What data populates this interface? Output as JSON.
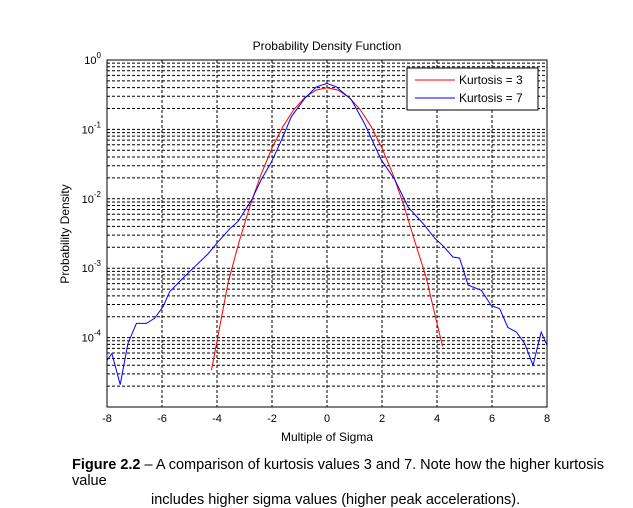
{
  "chart_data": {
    "type": "line",
    "title": "Probability Density Function",
    "xlabel": "Multiple of Sigma",
    "ylabel": "Probability Density",
    "xlim": [
      -8,
      8
    ],
    "ylim": [
      1e-05,
      1
    ],
    "yscale": "log",
    "grid": true,
    "legend_position": "top-right",
    "x_ticks": [
      "-8",
      "-6",
      "-4",
      "-2",
      "0",
      "2",
      "4",
      "6",
      "8"
    ],
    "y_ticks": [
      {
        "base": "10",
        "exp": "0",
        "value": 1
      },
      {
        "base": "10",
        "exp": "-1",
        "value": 0.1
      },
      {
        "base": "10",
        "exp": "-2",
        "value": 0.01
      },
      {
        "base": "10",
        "exp": "-3",
        "value": 0.001
      },
      {
        "base": "10",
        "exp": "-4",
        "value": 0.0001
      }
    ],
    "series": [
      {
        "name": "Kurtosis = 3",
        "color": "#ff0000",
        "x": [
          -4.2,
          -3.6,
          -3.2,
          -2.8,
          -2.4,
          -2.0,
          -1.6,
          -1.2,
          -0.8,
          -0.4,
          0,
          0.4,
          0.8,
          1.2,
          1.6,
          2.0,
          2.4,
          2.8,
          3.2,
          3.6,
          4.0,
          4.2
        ],
        "y": [
          3.4e-05,
          0.00061,
          0.00238,
          0.0079,
          0.0224,
          0.054,
          0.111,
          0.194,
          0.29,
          0.368,
          0.399,
          0.368,
          0.29,
          0.194,
          0.111,
          0.054,
          0.0224,
          0.0079,
          0.00238,
          0.00075,
          0.00016,
          7.5e-05
        ]
      },
      {
        "name": "Kurtosis = 7",
        "color": "#0000ff",
        "x": [
          -8,
          -7.82,
          -7.52,
          -7.24,
          -6.93,
          -6.57,
          -6.27,
          -5.96,
          -5.72,
          -5.3,
          -4.81,
          -4.33,
          -3.96,
          -3.54,
          -3.24,
          -2.75,
          -2.39,
          -2.02,
          -1.66,
          -1.3,
          -0.81,
          -0.39,
          0,
          0.34,
          0.88,
          1.37,
          1.98,
          2.46,
          2.95,
          3.49,
          3.92,
          4.22,
          4.58,
          4.82,
          5.13,
          5.61,
          5.97,
          6.28,
          6.58,
          6.89,
          7.19,
          7.49,
          7.79,
          8
        ],
        "y": [
          4.7e-05,
          5.9e-05,
          2.1e-05,
          8.2e-05,
          0.00016,
          0.00016,
          0.00019,
          0.00028,
          0.00046,
          0.00068,
          0.00105,
          0.0016,
          0.0024,
          0.0037,
          0.0047,
          0.0095,
          0.019,
          0.034,
          0.07,
          0.152,
          0.28,
          0.41,
          0.46,
          0.41,
          0.27,
          0.12,
          0.036,
          0.019,
          0.0076,
          0.0044,
          0.0027,
          0.0021,
          0.00145,
          0.0014,
          0.00057,
          0.00048,
          0.00029,
          0.00026,
          0.00014,
          0.00012,
          8.2e-05,
          4e-05,
          0.00012,
          7.8e-05
        ]
      }
    ]
  },
  "caption": {
    "label": "Figure 2.2",
    "text_line1": " – A comparison of kurtosis values 3 and 7.  Note how the higher kurtosis value",
    "text_line2": "includes higher sigma values (higher peak accelerations)."
  }
}
